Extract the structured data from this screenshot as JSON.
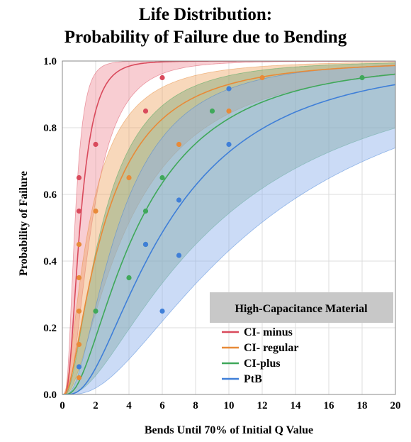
{
  "chart_data": {
    "type": "line",
    "title_line1": "Life Distribution:",
    "title_line2": "Probability of Failure due to Bending",
    "xlabel": "Bends Until 70% of Initial Q Value",
    "ylabel": "Probability of Failure",
    "xlim": [
      0,
      20
    ],
    "ylim": [
      0,
      1
    ],
    "x_ticks": [
      "0",
      "2",
      "4",
      "6",
      "8",
      "10",
      "12",
      "14",
      "16",
      "18",
      "20"
    ],
    "y_ticks": [
      "0.0",
      "0.2",
      "0.4",
      "0.6",
      "0.8",
      "1.0"
    ],
    "grid": true,
    "legend_title": "High-Capacitance Material",
    "legend_position": "bottom-right",
    "series": [
      {
        "name": "CI- minus",
        "color": "#d94a5c",
        "band_color": "#f0909c",
        "points": [
          [
            1,
            0.65
          ],
          [
            1,
            0.55
          ],
          [
            2,
            0.75
          ],
          [
            5,
            0.85
          ],
          [
            6,
            0.95
          ]
        ]
      },
      {
        "name": "CI- regular",
        "color": "#e88a38",
        "band_color": "#f0a868",
        "points": [
          [
            1,
            0.45
          ],
          [
            1,
            0.35
          ],
          [
            1,
            0.25
          ],
          [
            1,
            0.15
          ],
          [
            1,
            0.05
          ],
          [
            2,
            0.55
          ],
          [
            4,
            0.65
          ],
          [
            7,
            0.75
          ],
          [
            10,
            0.85
          ],
          [
            12,
            0.95
          ]
        ]
      },
      {
        "name": "CI-plus",
        "color": "#3fa85a",
        "band_color": "#7fa878",
        "points": [
          [
            2,
            0.25
          ],
          [
            4,
            0.35
          ],
          [
            5,
            0.55
          ],
          [
            5,
            0.45
          ],
          [
            6,
            0.65
          ],
          [
            9,
            0.85
          ],
          [
            18,
            0.95
          ]
        ]
      },
      {
        "name": "PtB",
        "color": "#3f7fd8",
        "band_color": "#8cb0ec",
        "points": [
          [
            1,
            0.083
          ],
          [
            5,
            0.45
          ],
          [
            6,
            0.25
          ],
          [
            7,
            0.583
          ],
          [
            7,
            0.417
          ],
          [
            10,
            0.75
          ],
          [
            10,
            0.917
          ]
        ]
      }
    ]
  }
}
